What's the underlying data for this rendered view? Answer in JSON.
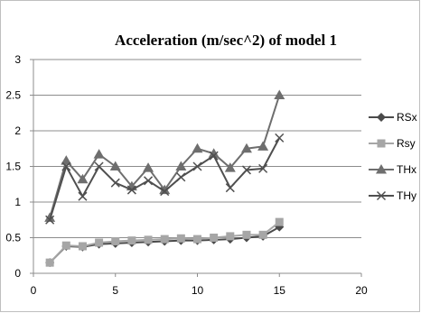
{
  "chart_data": {
    "type": "line",
    "title": "Acceleration (m/sec^2) of model 1",
    "xlabel": "",
    "ylabel": "",
    "xlim": [
      0,
      20
    ],
    "ylim": [
      0,
      3
    ],
    "x_ticks": [
      0,
      5,
      10,
      15,
      20
    ],
    "y_ticks": [
      0,
      0.5,
      1,
      1.5,
      2,
      2.5,
      3
    ],
    "grid": "horizontal",
    "legend_position": "right",
    "x": [
      1,
      2,
      3,
      4,
      5,
      6,
      7,
      8,
      9,
      10,
      11,
      12,
      13,
      14,
      15
    ],
    "series": [
      {
        "name": "RSx",
        "color": "#4a4a4a",
        "marker": "diamond",
        "values": [
          0.15,
          0.38,
          0.37,
          0.41,
          0.42,
          0.43,
          0.44,
          0.45,
          0.46,
          0.46,
          0.47,
          0.48,
          0.5,
          0.52,
          0.65
        ]
      },
      {
        "name": "Rsy",
        "color": "#a6a6a6",
        "marker": "square",
        "values": [
          0.15,
          0.39,
          0.38,
          0.43,
          0.45,
          0.46,
          0.47,
          0.48,
          0.49,
          0.48,
          0.5,
          0.52,
          0.54,
          0.54,
          0.72
        ]
      },
      {
        "name": "THx",
        "color": "#6e6e6e",
        "marker": "triangle",
        "values": [
          0.78,
          1.58,
          1.32,
          1.67,
          1.5,
          1.22,
          1.48,
          1.17,
          1.5,
          1.75,
          1.68,
          1.48,
          1.75,
          1.78,
          2.5
        ]
      },
      {
        "name": "THy",
        "color": "#4f4f4f",
        "marker": "x",
        "values": [
          0.75,
          1.5,
          1.08,
          1.5,
          1.27,
          1.17,
          1.3,
          1.15,
          1.35,
          1.5,
          1.65,
          1.2,
          1.45,
          1.47,
          1.9
        ]
      }
    ]
  }
}
